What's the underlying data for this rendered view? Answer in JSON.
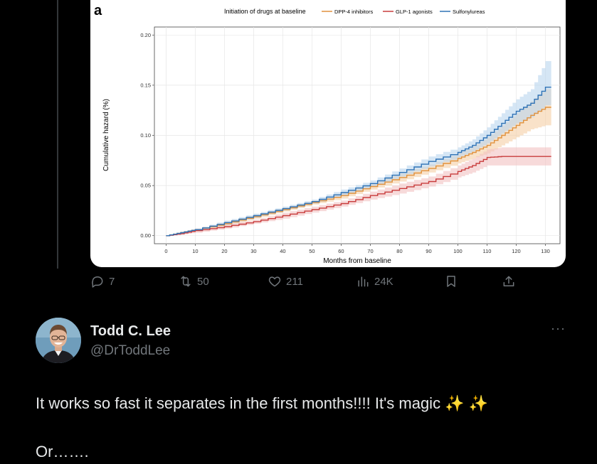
{
  "chart_data": {
    "type": "line",
    "panel_label": "a",
    "legend_title": "Initiation of drugs at baseline",
    "legend_position": "top",
    "xlabel": "Months from baseline",
    "ylabel": "Cumulative hazard (%)",
    "xlim": [
      -4,
      135
    ],
    "ylim": [
      -0.008,
      0.208
    ],
    "x_ticks": [
      0,
      10,
      20,
      30,
      40,
      50,
      60,
      70,
      80,
      90,
      100,
      110,
      120,
      130
    ],
    "y_ticks": [
      0.0,
      0.05,
      0.1,
      0.15,
      0.2
    ],
    "y_tick_labels": [
      "0.00",
      "0.05",
      "0.10",
      "0.15",
      "0.20"
    ],
    "grid": true,
    "series": [
      {
        "name": "DPP-4 inhibitors",
        "color": "#e0913d",
        "band": "#f5cfa5",
        "x": [
          0,
          5,
          10,
          20,
          30,
          40,
          50,
          60,
          70,
          80,
          90,
          100,
          105,
          110,
          115,
          120,
          125,
          130,
          132
        ],
        "y": [
          0.0,
          0.003,
          0.006,
          0.012,
          0.019,
          0.026,
          0.033,
          0.04,
          0.049,
          0.058,
          0.067,
          0.077,
          0.083,
          0.09,
          0.1,
          0.11,
          0.12,
          0.128,
          0.128
        ],
        "lower": [
          0.0,
          0.002,
          0.005,
          0.01,
          0.017,
          0.024,
          0.031,
          0.037,
          0.046,
          0.054,
          0.063,
          0.072,
          0.077,
          0.082,
          0.09,
          0.098,
          0.106,
          0.11,
          0.11
        ],
        "upper": [
          0.0,
          0.004,
          0.007,
          0.014,
          0.021,
          0.028,
          0.035,
          0.043,
          0.052,
          0.062,
          0.071,
          0.082,
          0.089,
          0.098,
          0.11,
          0.122,
          0.134,
          0.146,
          0.146
        ]
      },
      {
        "name": "GLP-1 agonists",
        "color": "#c83c3c",
        "band": "#f2c2c2",
        "x": [
          0,
          5,
          10,
          20,
          30,
          40,
          50,
          60,
          70,
          80,
          90,
          100,
          105,
          110,
          115,
          120,
          125,
          130,
          132
        ],
        "y": [
          0.0,
          0.002,
          0.005,
          0.009,
          0.014,
          0.02,
          0.026,
          0.032,
          0.04,
          0.047,
          0.054,
          0.064,
          0.07,
          0.078,
          0.079,
          0.079,
          0.079,
          0.079,
          0.079
        ],
        "lower": [
          0.0,
          0.001,
          0.003,
          0.007,
          0.012,
          0.017,
          0.023,
          0.029,
          0.036,
          0.042,
          0.049,
          0.058,
          0.063,
          0.07,
          0.07,
          0.07,
          0.07,
          0.07,
          0.07
        ],
        "upper": [
          0.0,
          0.003,
          0.007,
          0.011,
          0.016,
          0.023,
          0.029,
          0.035,
          0.044,
          0.052,
          0.059,
          0.07,
          0.077,
          0.086,
          0.088,
          0.088,
          0.088,
          0.088,
          0.088
        ]
      },
      {
        "name": "Sulfonylureas",
        "color": "#2f72b5",
        "band": "#b9d6ee",
        "x": [
          0,
          5,
          10,
          20,
          30,
          40,
          50,
          60,
          70,
          80,
          90,
          100,
          105,
          110,
          115,
          120,
          125,
          130,
          132
        ],
        "y": [
          0.0,
          0.003,
          0.006,
          0.013,
          0.02,
          0.027,
          0.034,
          0.043,
          0.052,
          0.063,
          0.074,
          0.083,
          0.09,
          0.1,
          0.112,
          0.124,
          0.132,
          0.148,
          0.148
        ],
        "lower": [
          0.0,
          0.002,
          0.005,
          0.011,
          0.018,
          0.025,
          0.032,
          0.04,
          0.049,
          0.059,
          0.069,
          0.078,
          0.084,
          0.092,
          0.102,
          0.112,
          0.118,
          0.13,
          0.13
        ],
        "upper": [
          0.0,
          0.004,
          0.007,
          0.015,
          0.022,
          0.029,
          0.036,
          0.046,
          0.055,
          0.067,
          0.079,
          0.088,
          0.096,
          0.108,
          0.122,
          0.136,
          0.146,
          0.174,
          0.174
        ]
      }
    ]
  },
  "actions": {
    "reply_count": "7",
    "retweet_count": "50",
    "like_count": "211",
    "views_count": "24K"
  },
  "icons": {
    "reply": "speech-bubble-icon",
    "retweet": "retweet-arrows-icon",
    "like": "heart-icon",
    "views": "bar-chart-icon",
    "bookmark": "bookmark-icon",
    "share": "share-upload-icon",
    "more": "more-dots-icon"
  },
  "reply": {
    "name": "Todd C. Lee",
    "handle": "@DrToddLee",
    "more": "···",
    "text": "It works so fast it separates in the first months!!!! It's magic ✨ ✨\n\nOr……."
  },
  "colors": {
    "background": "#000000",
    "text": "#e7e9ea",
    "secondary": "#71767b"
  }
}
